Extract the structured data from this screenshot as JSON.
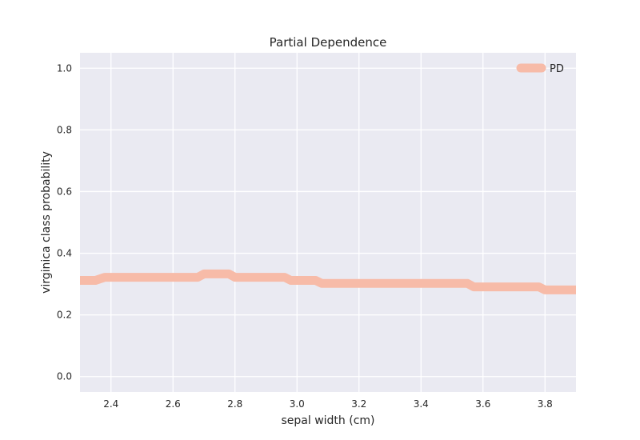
{
  "chart_data": {
    "type": "line",
    "title": "Partial Dependence",
    "xlabel": "sepal width (cm)",
    "ylabel": "virginica class probability",
    "xlim": [
      2.3,
      3.9
    ],
    "ylim": [
      -0.05,
      1.05
    ],
    "grid": true,
    "legend_placement": "top-right",
    "x_ticks": [
      2.4,
      2.6,
      2.8,
      3.0,
      3.2,
      3.4,
      3.6,
      3.8
    ],
    "x_tick_labels": [
      "2.4",
      "2.6",
      "2.8",
      "3.0",
      "3.2",
      "3.4",
      "3.6",
      "3.8"
    ],
    "y_ticks": [
      0.0,
      0.2,
      0.4,
      0.6,
      0.8,
      1.0
    ],
    "y_tick_labels": [
      "0.0",
      "0.2",
      "0.4",
      "0.6",
      "0.8",
      "1.0"
    ],
    "series": [
      {
        "name": "PD",
        "color": "#f7bba8",
        "x": [
          2.3,
          2.35,
          2.38,
          2.68,
          2.7,
          2.78,
          2.8,
          2.96,
          2.98,
          3.06,
          3.08,
          3.55,
          3.57,
          3.78,
          3.8,
          3.9
        ],
        "y": [
          0.312,
          0.312,
          0.322,
          0.322,
          0.333,
          0.333,
          0.322,
          0.322,
          0.312,
          0.312,
          0.302,
          0.302,
          0.291,
          0.291,
          0.281,
          0.281
        ]
      }
    ]
  }
}
